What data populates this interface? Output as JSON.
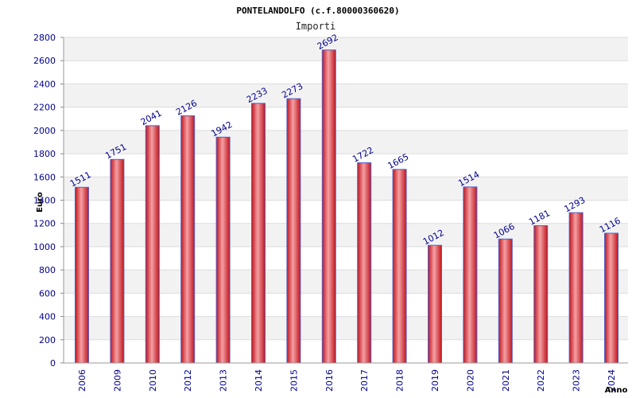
{
  "chart_data": {
    "type": "bar",
    "title": "PONTELANDOLFO (c.f.80000360620)",
    "subtitle": "Importi",
    "xlabel": "Anno",
    "ylabel": "Euro",
    "categories": [
      "2006",
      "2009",
      "2010",
      "2012",
      "2013",
      "2014",
      "2015",
      "2016",
      "2017",
      "2018",
      "2019",
      "2020",
      "2021",
      "2022",
      "2023",
      "2024"
    ],
    "values": [
      1511,
      1751,
      2041,
      2126,
      1942,
      2233,
      2273,
      2692,
      1722,
      1665,
      1012,
      1514,
      1066,
      1181,
      1293,
      1116
    ],
    "value_labels": [
      "1511",
      "1751",
      "2041",
      "2126",
      "1942",
      "2233",
      "2273",
      "2692",
      "1722",
      "1665",
      "1012",
      "1514",
      "1066",
      "1181",
      "1293",
      "1116"
    ],
    "yticks": [
      "0",
      "200",
      "400",
      "600",
      "800",
      "1000",
      "1200",
      "1400",
      "1600",
      "1800",
      "2000",
      "2200",
      "2400",
      "2600",
      "2800"
    ],
    "ylim": [
      0,
      2800
    ],
    "grid": true,
    "legend": "none",
    "colors": {
      "bar": "#e8202a",
      "bar_highlight": "#f4a0a4",
      "bar_edge": "#5560c8",
      "band": "#f2f2f2",
      "text": "#00008b"
    }
  }
}
